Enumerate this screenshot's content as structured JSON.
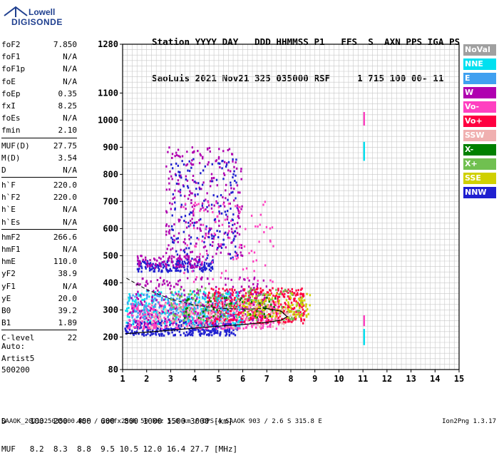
{
  "logo": {
    "line1": "Lowell",
    "line2": "DIGISONDE"
  },
  "header": {
    "line1": "Station YYYY DAY   DDD HHMMSS P1   FFS  S  AXN PPS IGA PS",
    "line2": "SaoLuis 2021 Nov21 325 035000 RSF     1 715 100 00- 11"
  },
  "params": [
    [
      {
        "name": "foF2",
        "value": "7.850"
      },
      {
        "name": "foF1",
        "value": "N/A"
      },
      {
        "name": "foF1p",
        "value": "N/A"
      },
      {
        "name": "foE",
        "value": "N/A"
      },
      {
        "name": "foEp",
        "value": "0.35"
      },
      {
        "name": "fxI",
        "value": "8.25"
      },
      {
        "name": "foEs",
        "value": "N/A"
      },
      {
        "name": "fmin",
        "value": "2.10"
      }
    ],
    [
      {
        "name": "MUF(D)",
        "value": "27.75"
      },
      {
        "name": "M(D)",
        "value": "3.54"
      },
      {
        "name": "D",
        "value": "N/A"
      }
    ],
    [
      {
        "name": "h`F",
        "value": "220.0"
      },
      {
        "name": "h`F2",
        "value": "220.0"
      },
      {
        "name": "h`E",
        "value": "N/A"
      },
      {
        "name": "h`Es",
        "value": "N/A"
      }
    ],
    [
      {
        "name": "hmF2",
        "value": "266.6"
      },
      {
        "name": "hmF1",
        "value": "N/A"
      },
      {
        "name": "hmE",
        "value": "110.0"
      },
      {
        "name": "yF2",
        "value": "38.9"
      },
      {
        "name": "yF1",
        "value": "N/A"
      },
      {
        "name": "yE",
        "value": "20.0"
      },
      {
        "name": "B0",
        "value": "39.2"
      },
      {
        "name": "B1",
        "value": "1.89"
      }
    ],
    [
      {
        "name": "C-level",
        "value": "22"
      }
    ]
  ],
  "auto": {
    "line1": "Auto:",
    "line2": "Artist5",
    "line3": "500200"
  },
  "dmuf": {
    "d_line": "D     100  200  400  600  800 1000 1500 3000 [km]",
    "muf_line": "MUF   8.2  8.3  8.8  9.5 10.5 12.0 16.4 27.7 [MHz]"
  },
  "footer": {
    "left": "SAAOK_2021325035000.RSF / 280fx256h 50 kHz 5.0 km / DPS-4 SAAOK 903 / 2.6 S 315.8 E",
    "right": "Ion2Png 1.3.17"
  },
  "legend": [
    {
      "label": "NoVal",
      "color": "#a0a0a0"
    },
    {
      "label": "NNE",
      "color": "#00e0f0"
    },
    {
      "label": "E",
      "color": "#40a0f0"
    },
    {
      "label": "W",
      "color": "#b000b0"
    },
    {
      "label": "Vo-",
      "color": "#ff40c0"
    },
    {
      "label": "Vo+",
      "color": "#ff0040"
    },
    {
      "label": "SSW",
      "color": "#f0b0b0"
    },
    {
      "label": "X-",
      "color": "#008000"
    },
    {
      "label": "X+",
      "color": "#70c050"
    },
    {
      "label": "SSE",
      "color": "#d0d000"
    },
    {
      "label": "NNW",
      "color": "#2020d0"
    }
  ],
  "chart_data": {
    "type": "scatter",
    "xlim": [
      1,
      15
    ],
    "ylim": [
      80,
      1280
    ],
    "x_ticks": [
      "1",
      "2",
      "3",
      "4",
      "5",
      "6",
      "7",
      "8",
      "9",
      "10",
      "11",
      "12",
      "13",
      "14",
      "15"
    ],
    "y_ticks": [
      {
        "value": 80,
        "label": "80"
      },
      {
        "value": 200,
        "label": "200"
      },
      {
        "value": 300,
        "label": "300"
      },
      {
        "value": 400,
        "label": "400"
      },
      {
        "value": 500,
        "label": "500"
      },
      {
        "value": 600,
        "label": "600"
      },
      {
        "value": 700,
        "label": "700"
      },
      {
        "value": 800,
        "label": "800"
      },
      {
        "value": 900,
        "label": "900"
      },
      {
        "value": 1000,
        "label": "1000"
      },
      {
        "value": 1100,
        "label": "1100"
      },
      {
        "value": 1280,
        "label": "1280"
      }
    ],
    "grid": true,
    "clusters": [
      {
        "color": "#2020d0",
        "xr": [
          1.1,
          5.8
        ],
        "yr": [
          205,
          260
        ],
        "n": 360
      },
      {
        "color": "#ff40c0",
        "xr": [
          1.2,
          7.5
        ],
        "yr": [
          230,
          330
        ],
        "n": 480
      },
      {
        "color": "#ff0040",
        "xr": [
          4.5,
          8.6
        ],
        "yr": [
          250,
          380
        ],
        "n": 420
      },
      {
        "color": "#00e0f0",
        "xr": [
          1.1,
          6.0
        ],
        "yr": [
          240,
          370
        ],
        "n": 220
      },
      {
        "color": "#40a0f0",
        "xr": [
          1.2,
          5.5
        ],
        "yr": [
          260,
          360
        ],
        "n": 180
      },
      {
        "color": "#b000b0",
        "xr": [
          1.3,
          7.0
        ],
        "yr": [
          240,
          420
        ],
        "n": 250
      },
      {
        "color": "#70c050",
        "xr": [
          3.0,
          8.5
        ],
        "yr": [
          260,
          380
        ],
        "n": 140
      },
      {
        "color": "#d0d000",
        "xr": [
          6.0,
          8.8
        ],
        "yr": [
          270,
          360
        ],
        "n": 120
      },
      {
        "color": "#f0b0b0",
        "xr": [
          2.0,
          8.0
        ],
        "yr": [
          230,
          330
        ],
        "n": 140
      },
      {
        "color": "#008000",
        "xr": [
          3.5,
          7.5
        ],
        "yr": [
          270,
          350
        ],
        "n": 50
      },
      {
        "color": "#2020d0",
        "xr": [
          1.6,
          4.8
        ],
        "yr": [
          440,
          480
        ],
        "n": 160
      },
      {
        "color": "#b000b0",
        "xr": [
          1.6,
          4.5
        ],
        "yr": [
          455,
          500
        ],
        "n": 90
      },
      {
        "color": "#b000b0",
        "xr": [
          2.8,
          6.0
        ],
        "yr": [
          480,
          900
        ],
        "n": 260
      },
      {
        "color": "#2020d0",
        "xr": [
          3.0,
          5.8
        ],
        "yr": [
          480,
          860
        ],
        "n": 160
      },
      {
        "color": "#ff40c0",
        "xr": [
          3.5,
          7.5
        ],
        "yr": [
          400,
          700
        ],
        "n": 90
      }
    ],
    "vertical_streaks": [
      {
        "x": 11.05,
        "y": [
          980,
          1030
        ],
        "color": "#ff40c0"
      },
      {
        "x": 11.05,
        "y": [
          850,
          920
        ],
        "color": "#00e0f0"
      },
      {
        "x": 11.05,
        "y": [
          240,
          280
        ],
        "color": "#ff40c0"
      },
      {
        "x": 11.05,
        "y": [
          170,
          230
        ],
        "color": "#00e0f0"
      }
    ],
    "profile_curve": [
      [
        1.1,
        212
      ],
      [
        2.0,
        218
      ],
      [
        3.0,
        225
      ],
      [
        4.0,
        233
      ],
      [
        5.0,
        240
      ],
      [
        6.0,
        246
      ],
      [
        7.0,
        254
      ],
      [
        7.6,
        262
      ],
      [
        7.85,
        275
      ],
      [
        7.6,
        295
      ],
      [
        7.0,
        305
      ],
      [
        6.0,
        303
      ],
      [
        5.0,
        306
      ],
      [
        4.0,
        318
      ],
      [
        3.0,
        340
      ],
      [
        2.0,
        375
      ],
      [
        1.1,
        420
      ]
    ]
  }
}
